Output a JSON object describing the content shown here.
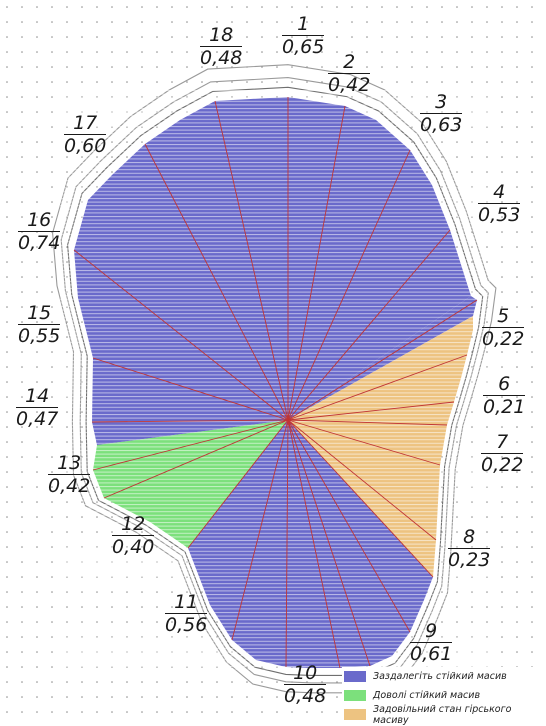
{
  "colors": {
    "stable": "#6A6ACB",
    "fairly_stable": "#7CE07C",
    "satisfactory": "#EDC381",
    "radial_line": "#C03535"
  },
  "sectors": [
    {
      "num": "1",
      "value": "0,65",
      "category": "stable"
    },
    {
      "num": "2",
      "value": "0,42",
      "category": "stable"
    },
    {
      "num": "3",
      "value": "0,63",
      "category": "stable"
    },
    {
      "num": "4",
      "value": "0,53",
      "category": "stable"
    },
    {
      "num": "5",
      "value": "0,22",
      "category": "satisfactory"
    },
    {
      "num": "6",
      "value": "0,21",
      "category": "satisfactory"
    },
    {
      "num": "7",
      "value": "0,22",
      "category": "satisfactory"
    },
    {
      "num": "8",
      "value": "0,23",
      "category": "satisfactory"
    },
    {
      "num": "9",
      "value": "0,61",
      "category": "stable"
    },
    {
      "num": "10",
      "value": "0,48",
      "category": "stable"
    },
    {
      "num": "11",
      "value": "0,56",
      "category": "stable"
    },
    {
      "num": "12",
      "value": "0,40",
      "category": "fairly_stable"
    },
    {
      "num": "13",
      "value": "0,42",
      "category": "fairly_stable"
    },
    {
      "num": "14",
      "value": "0,47",
      "category": "stable"
    },
    {
      "num": "15",
      "value": "0,55",
      "category": "stable"
    },
    {
      "num": "16",
      "value": "0,74",
      "category": "stable"
    },
    {
      "num": "17",
      "value": "0,60",
      "category": "stable"
    },
    {
      "num": "18",
      "value": "0,48",
      "category": "stable"
    }
  ],
  "legend": [
    {
      "label": "Заздалегіть стійкий масив",
      "category": "stable"
    },
    {
      "label": "Доволі стійкий масив",
      "category": "fairly_stable"
    },
    {
      "label": "Задовільний стан гірського масиву",
      "category": "satisfactory"
    }
  ]
}
